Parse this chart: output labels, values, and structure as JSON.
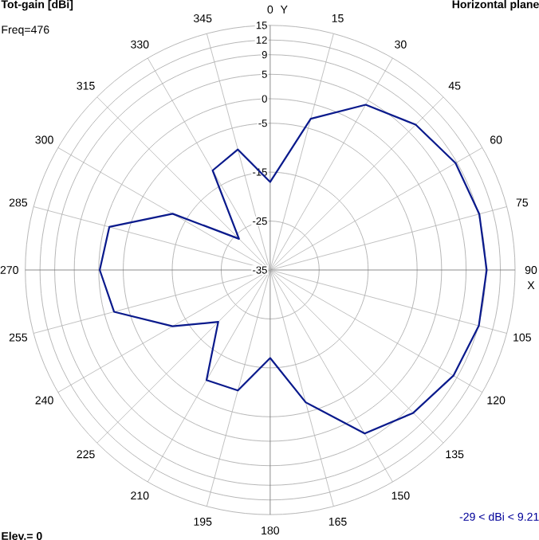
{
  "chart_data": {
    "type": "radar",
    "title": "Tot-gain [dBi]",
    "subtitle": "Horizontal plane",
    "xlabel": "X",
    "ylabel": "Y",
    "categories": [
      "0",
      "15",
      "30",
      "45",
      "60",
      "75",
      "90",
      "105",
      "120",
      "135",
      "150",
      "165",
      "180",
      "195",
      "210",
      "225",
      "240",
      "255",
      "270",
      "285",
      "300",
      "315",
      "330",
      "345"
    ],
    "series": [
      {
        "color": "#0a1a8c",
        "values": [
          -17,
          -3,
          4,
          7,
          8.7,
          9.2,
          9.2,
          9.1,
          8.2,
          6.3,
          3.6,
          -7,
          -17,
          -9.5,
          -9,
          -20,
          -12,
          -2,
          -0.2,
          -1,
          -12,
          -26,
          -11.5,
          -9.5
        ]
      }
    ],
    "ylim": [
      -35,
      15
    ],
    "yticks": [
      15,
      12,
      9,
      5,
      0,
      -5,
      -15,
      -25,
      -35
    ],
    "annotations": [
      "Freq=476",
      "-29 < dBi < 9.21",
      "Elev.= 0"
    ],
    "grid": true
  }
}
